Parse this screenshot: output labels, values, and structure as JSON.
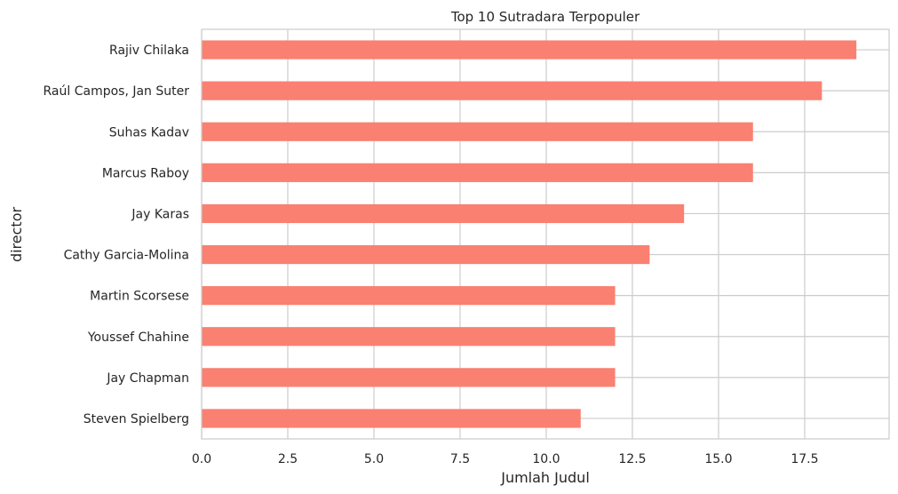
{
  "chart_data": {
    "type": "bar",
    "orientation": "horizontal",
    "title": "Top 10 Sutradara Terpopuler",
    "xlabel": "Jumlah Judul",
    "ylabel": "director",
    "categories": [
      "Rajiv Chilaka",
      "Raúl Campos, Jan Suter",
      "Suhas Kadav",
      "Marcus Raboy",
      "Jay Karas",
      "Cathy Garcia-Molina",
      "Martin Scorsese",
      "Youssef Chahine",
      "Jay Chapman",
      "Steven Spielberg"
    ],
    "values": [
      19,
      18,
      16,
      16,
      14,
      13,
      12,
      12,
      12,
      11
    ],
    "xlim": [
      0,
      19.95
    ],
    "xticks": [
      0,
      2.5,
      5,
      7.5,
      10,
      12.5,
      15,
      17.5
    ],
    "xtick_labels": [
      "0.0",
      "2.5",
      "5.0",
      "7.5",
      "10.0",
      "12.5",
      "15.0",
      "17.5"
    ],
    "grid": true,
    "bar_color": "#fa8072"
  }
}
